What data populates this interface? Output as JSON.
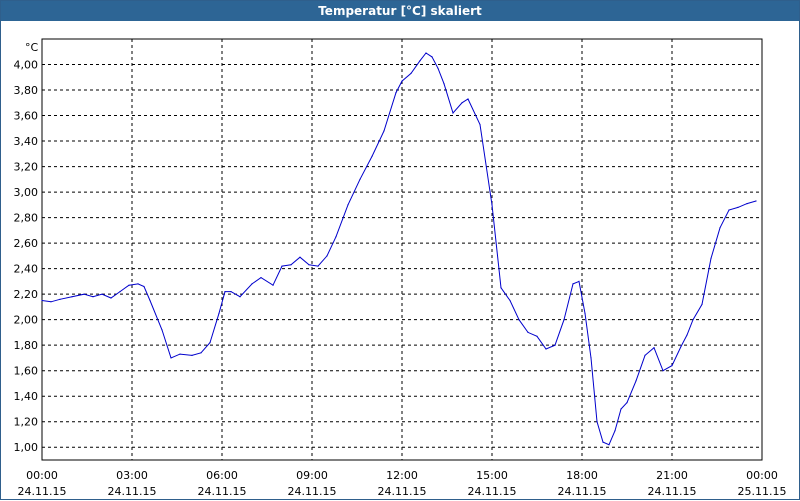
{
  "window": {
    "title": "Temperatur [°C] skaliert"
  },
  "chart_data": {
    "type": "line",
    "title": "Temperatur [°C] skaliert",
    "ylabel": "°C",
    "xlabel": "",
    "grid": true,
    "ylim": [
      0.9,
      4.2
    ],
    "xlim": [
      0,
      24
    ],
    "y_ticks": [
      "1,00",
      "1,20",
      "1,40",
      "1,60",
      "1,80",
      "2,00",
      "2,20",
      "2,40",
      "2,60",
      "2,80",
      "3,00",
      "3,20",
      "3,40",
      "3,60",
      "3,80",
      "4,00"
    ],
    "y_tick_values": [
      1.0,
      1.2,
      1.4,
      1.6,
      1.8,
      2.0,
      2.2,
      2.4,
      2.6,
      2.8,
      3.0,
      3.2,
      3.4,
      3.6,
      3.8,
      4.0
    ],
    "x_ticks": [
      {
        "time": "00:00",
        "date": "24.11.15"
      },
      {
        "time": "03:00",
        "date": "24.11.15"
      },
      {
        "time": "06:00",
        "date": "24.11.15"
      },
      {
        "time": "09:00",
        "date": "24.11.15"
      },
      {
        "time": "12:00",
        "date": "24.11.15"
      },
      {
        "time": "15:00",
        "date": "24.11.15"
      },
      {
        "time": "18:00",
        "date": "24.11.15"
      },
      {
        "time": "21:00",
        "date": "24.11.15"
      },
      {
        "time": "00:00",
        "date": "25.11.15"
      }
    ],
    "x_tick_values": [
      0,
      3,
      6,
      9,
      12,
      15,
      18,
      21,
      24
    ],
    "series": [
      {
        "color": "#0000cc",
        "x": [
          0,
          0.3,
          0.6,
          1.0,
          1.4,
          1.7,
          2.0,
          2.3,
          2.6,
          2.9,
          3.2,
          3.4,
          3.6,
          4.0,
          4.3,
          4.6,
          5.0,
          5.3,
          5.6,
          5.9,
          6.1,
          6.3,
          6.6,
          7.0,
          7.3,
          7.7,
          8.0,
          8.3,
          8.6,
          8.9,
          9.2,
          9.5,
          9.8,
          10.2,
          10.6,
          11.0,
          11.4,
          11.8,
          12.0,
          12.3,
          12.6,
          12.8,
          13.0,
          13.2,
          13.4,
          13.7,
          14.0,
          14.2,
          14.6,
          15.0,
          15.3,
          15.6,
          15.9,
          16.2,
          16.5,
          16.8,
          17.1,
          17.4,
          17.7,
          17.9,
          18.1,
          18.3,
          18.5,
          18.7,
          18.9,
          19.1,
          19.3,
          19.5,
          19.8,
          20.1,
          20.4,
          20.7,
          21.0,
          21.3,
          21.5,
          21.7,
          22.0,
          22.3,
          22.6,
          22.9,
          23.2,
          23.5,
          23.8
        ],
        "y": [
          2.15,
          2.14,
          2.16,
          2.18,
          2.2,
          2.18,
          2.2,
          2.17,
          2.22,
          2.27,
          2.28,
          2.26,
          2.15,
          1.92,
          1.7,
          1.73,
          1.72,
          1.74,
          1.82,
          2.05,
          2.22,
          2.22,
          2.18,
          2.28,
          2.33,
          2.27,
          2.42,
          2.43,
          2.49,
          2.43,
          2.42,
          2.5,
          2.65,
          2.9,
          3.1,
          3.28,
          3.48,
          3.78,
          3.87,
          3.93,
          4.03,
          4.09,
          4.06,
          3.97,
          3.85,
          3.62,
          3.7,
          3.73,
          3.53,
          2.9,
          2.25,
          2.15,
          2.0,
          1.9,
          1.87,
          1.77,
          1.8,
          2.0,
          2.28,
          2.3,
          2.05,
          1.7,
          1.2,
          1.04,
          1.02,
          1.13,
          1.3,
          1.35,
          1.52,
          1.72,
          1.78,
          1.6,
          1.64,
          1.79,
          1.88,
          2.0,
          2.12,
          2.48,
          2.72,
          2.86,
          2.88,
          2.91,
          2.93
        ]
      }
    ]
  }
}
